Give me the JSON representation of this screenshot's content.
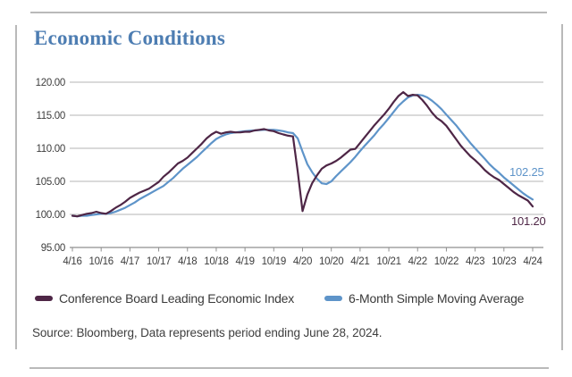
{
  "page": {
    "title": "Economic Conditions",
    "source_text": "Source: Bloomberg, Data represents period ending June 28, 2024."
  },
  "colors": {
    "title_blue": "#4d7db2",
    "lei_line": "#4e2646",
    "sma_line": "#5e94c9",
    "gridline": "#b5b5b5",
    "frame": "#b9b9b9",
    "text": "#3d3d3d"
  },
  "chart_data": {
    "type": "line",
    "title": "Economic Conditions",
    "xlabel": "",
    "ylabel": "",
    "ylim": [
      95,
      120
    ],
    "ytick_values": [
      120,
      115,
      110,
      105,
      100,
      95
    ],
    "ytick_labels": [
      "120.00",
      "115.00",
      "110.00",
      "105.00",
      "100.00",
      "95.00"
    ],
    "x_tick_labels": [
      "4/16",
      "10/16",
      "4/17",
      "10/17",
      "4/18",
      "10/18",
      "4/19",
      "10/19",
      "4/20",
      "10/20",
      "4/21",
      "10/21",
      "4/22",
      "10/22",
      "4/23",
      "10/23",
      "4/24"
    ],
    "x_start_label": "4/16",
    "x_end_label": "4/24",
    "grid": "horizontal",
    "legend_position": "bottom",
    "series": [
      {
        "name": "Conference Board Leading Economic Index",
        "color": "#4e2646",
        "end_label": "101.20",
        "values": [
          99.8,
          99.7,
          99.9,
          100.1,
          100.2,
          100.4,
          100.2,
          100.1,
          100.5,
          101.0,
          101.4,
          101.9,
          102.5,
          102.9,
          103.3,
          103.6,
          103.9,
          104.4,
          104.9,
          105.7,
          106.3,
          107.0,
          107.7,
          108.1,
          108.6,
          109.3,
          110.0,
          110.7,
          111.5,
          112.1,
          112.5,
          112.2,
          112.4,
          112.5,
          112.4,
          112.4,
          112.5,
          112.5,
          112.7,
          112.8,
          112.9,
          112.7,
          112.6,
          112.3,
          112.1,
          111.9,
          111.8,
          106.5,
          100.5,
          103.0,
          104.7,
          105.9,
          106.9,
          107.4,
          107.7,
          108.1,
          108.6,
          109.2,
          109.8,
          109.9,
          110.8,
          111.7,
          112.6,
          113.5,
          114.3,
          115.1,
          116.0,
          117.0,
          117.9,
          118.5,
          117.9,
          118.1,
          118.0,
          117.3,
          116.4,
          115.4,
          114.6,
          114.1,
          113.4,
          112.4,
          111.4,
          110.4,
          109.6,
          108.8,
          108.2,
          107.5,
          106.7,
          106.1,
          105.6,
          105.2,
          104.6,
          104.0,
          103.4,
          102.9,
          102.5,
          102.1,
          101.2
        ]
      },
      {
        "name": "6-Month Simple Moving Average",
        "color": "#5e94c9",
        "end_label": "102.25",
        "values": [
          99.8,
          99.7,
          99.8,
          99.8,
          99.9,
          100.0,
          100.1,
          100.1,
          100.2,
          100.4,
          100.7,
          101.0,
          101.4,
          101.8,
          102.3,
          102.7,
          103.1,
          103.5,
          103.9,
          104.3,
          104.9,
          105.5,
          106.2,
          106.9,
          107.5,
          108.1,
          108.7,
          109.4,
          110.1,
          110.8,
          111.4,
          111.8,
          112.1,
          112.3,
          112.4,
          112.5,
          112.6,
          112.65,
          112.7,
          112.75,
          112.8,
          112.8,
          112.8,
          112.7,
          112.6,
          112.4,
          112.3,
          111.5,
          109.5,
          107.6,
          106.4,
          105.4,
          104.7,
          104.6,
          105.0,
          105.8,
          106.5,
          107.2,
          107.9,
          108.7,
          109.6,
          110.4,
          111.2,
          112.0,
          112.9,
          113.7,
          114.6,
          115.5,
          116.4,
          117.1,
          117.7,
          118.0,
          118.1,
          118.0,
          117.7,
          117.2,
          116.6,
          115.9,
          115.1,
          114.3,
          113.5,
          112.6,
          111.7,
          110.8,
          110.0,
          109.2,
          108.4,
          107.6,
          106.9,
          106.3,
          105.6,
          105.0,
          104.4,
          103.8,
          103.2,
          102.7,
          102.25
        ]
      }
    ]
  }
}
